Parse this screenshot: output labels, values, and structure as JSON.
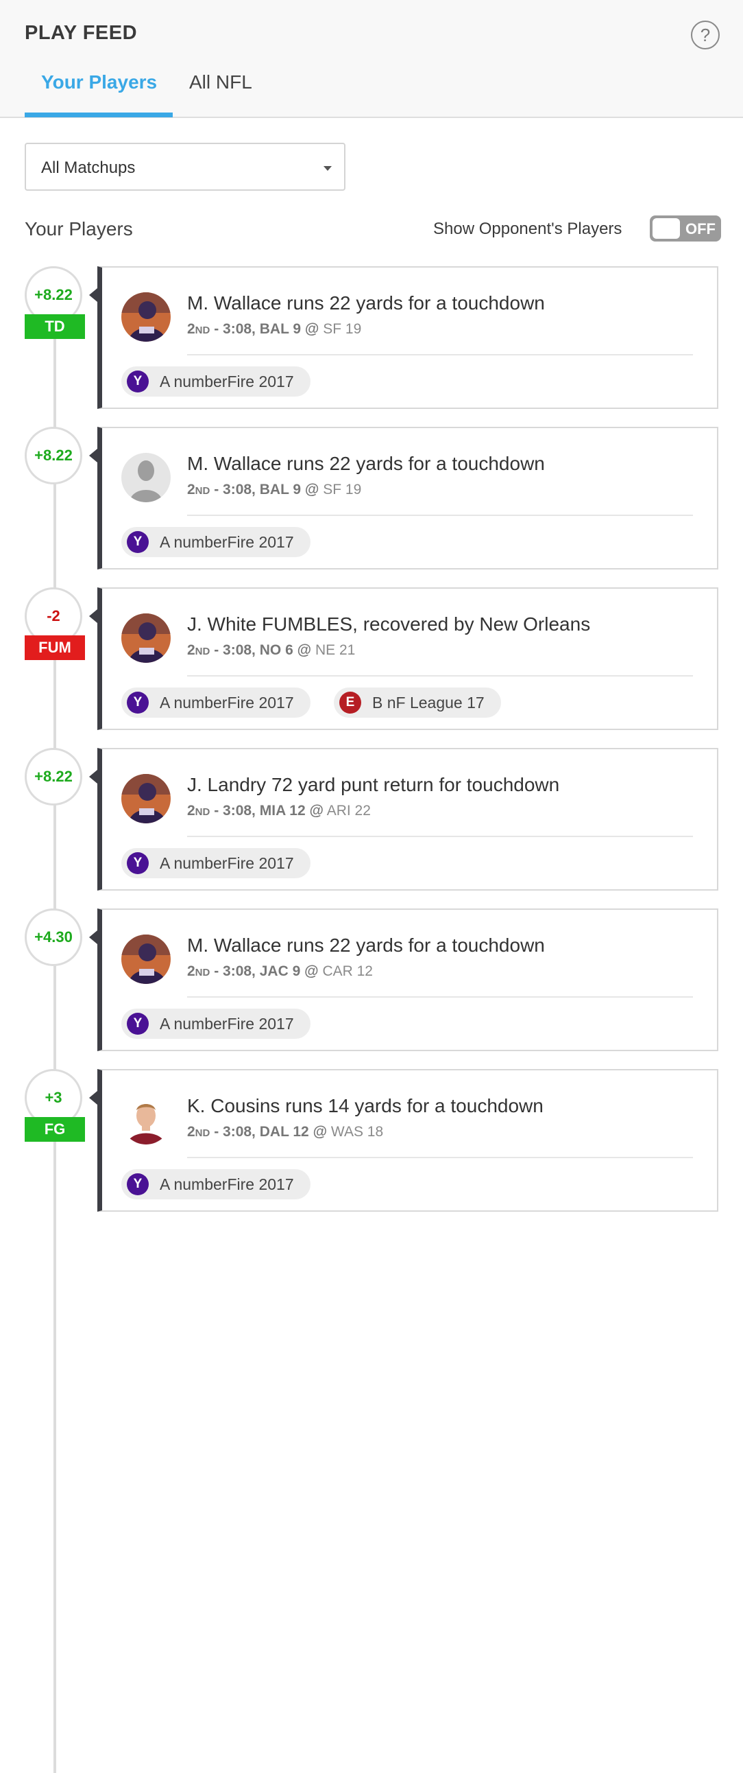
{
  "header": {
    "title": "PLAY FEED",
    "help_glyph": "?",
    "tabs": [
      {
        "label": "Your Players",
        "active": true
      },
      {
        "label": "All NFL",
        "active": false
      }
    ]
  },
  "filter": {
    "selected": "All Matchups"
  },
  "section": {
    "title": "Your Players",
    "toggle_label": "Show Opponent's  Players",
    "toggle_state": "OFF"
  },
  "colors": {
    "accent": "#3aa8e6",
    "positive": "#1daa1d",
    "negative": "#cc1111",
    "badge_green": "#1fba24",
    "badge_red": "#e21d1d",
    "yahoo": "#4a1294",
    "espn": "#b61e24"
  },
  "plays": [
    {
      "score": "+8.22",
      "score_sign": "positive",
      "badge": "TD",
      "badge_color": "green",
      "avatar": "player-photo",
      "headline": "M. Wallace runs 22 yards for a touchdown",
      "quarter": "2nd",
      "sep": " - ",
      "clock": "3:08,",
      "team1": "BAL 9",
      "at": "@",
      "team2": "SF 19",
      "leagues": [
        {
          "icon": "yahoo-icon",
          "glyph": "Y",
          "name": "A numberFire 2017"
        }
      ]
    },
    {
      "score": "+8.22",
      "score_sign": "positive",
      "badge": "",
      "badge_color": "",
      "avatar": "placeholder",
      "headline": "M. Wallace runs 22 yards for a touchdown",
      "quarter": "2nd",
      "sep": " - ",
      "clock": "3:08,",
      "team1": "BAL 9",
      "at": "@",
      "team2": "SF 19",
      "leagues": [
        {
          "icon": "yahoo-icon",
          "glyph": "Y",
          "name": "A numberFire 2017"
        }
      ]
    },
    {
      "score": "-2",
      "score_sign": "negative",
      "badge": "FUM",
      "badge_color": "red",
      "avatar": "player-photo",
      "headline": "J. White FUMBLES, recovered by New Orleans",
      "quarter": "2nd",
      "sep": " - ",
      "clock": "3:08,",
      "team1": "NO 6",
      "at": "@",
      "team2": "NE 21",
      "leagues": [
        {
          "icon": "yahoo-icon",
          "glyph": "Y",
          "name": "A numberFire 2017"
        },
        {
          "icon": "espn-icon",
          "glyph": "E",
          "name": "B nF League 17"
        }
      ]
    },
    {
      "score": "+8.22",
      "score_sign": "positive",
      "badge": "",
      "badge_color": "",
      "avatar": "player-photo",
      "headline": "J. Landry 72 yard punt return for touchdown",
      "quarter": "2nd",
      "sep": " - ",
      "clock": "3:08,",
      "team1": "MIA 12",
      "at": "@",
      "team2": "ARI 22",
      "leagues": [
        {
          "icon": "yahoo-icon",
          "glyph": "Y",
          "name": "A numberFire 2017"
        }
      ]
    },
    {
      "score": "+4.30",
      "score_sign": "positive",
      "badge": "",
      "badge_color": "",
      "avatar": "player-photo",
      "headline": "M. Wallace runs 22 yards for a touchdown",
      "quarter": "2nd",
      "sep": " - ",
      "clock": "3:08,",
      "team1": "JAC 9",
      "at": "@",
      "team2": "CAR 12",
      "leagues": [
        {
          "icon": "yahoo-icon",
          "glyph": "Y",
          "name": "A numberFire 2017"
        }
      ]
    },
    {
      "score": "+3",
      "score_sign": "positive",
      "badge": "FG",
      "badge_color": "green",
      "avatar": "player-photo-cousins",
      "headline": "K. Cousins runs 14 yards for a touchdown",
      "quarter": "2nd",
      "sep": " - ",
      "clock": "3:08,",
      "team1": "DAL 12",
      "at": "@",
      "team2": "WAS 18",
      "leagues": [
        {
          "icon": "yahoo-icon",
          "glyph": "Y",
          "name": "A numberFire 2017"
        }
      ]
    }
  ]
}
